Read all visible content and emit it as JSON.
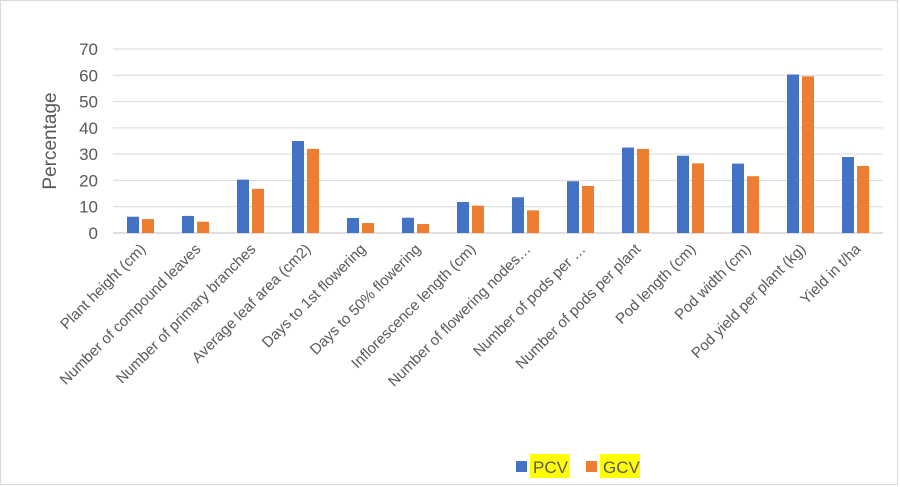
{
  "chart_data": {
    "type": "bar",
    "title": "",
    "xlabel": "",
    "ylabel": "Percentage",
    "ylim": [
      0,
      70
    ],
    "yticks": [
      0,
      10,
      20,
      30,
      40,
      50,
      60,
      70
    ],
    "grid": "horizontal",
    "legend_position": "bottom",
    "categories": [
      "Plant height (cm)",
      "Number of compound leaves",
      "Number of primary branches",
      "Average leaf area (cm2)",
      "Days to 1st flowering",
      "Days to 50% flowering",
      "Inflorescence length (cm)",
      "Number of flowering nodes…",
      "Number of pods per …",
      "Number of pods per plant",
      "Pod length (cm)",
      "Pod width (cm)",
      "Pod yield per plant (kg)",
      "Yield in t/ha"
    ],
    "series": [
      {
        "name": "PCV",
        "color": "#4472C4",
        "values": [
          6.2,
          6.5,
          20.3,
          35.0,
          5.7,
          5.8,
          11.8,
          13.6,
          19.7,
          32.5,
          29.4,
          26.4,
          60.3,
          28.9
        ]
      },
      {
        "name": "GCV",
        "color": "#ED7D31",
        "values": [
          5.3,
          4.3,
          16.8,
          32.0,
          3.8,
          3.4,
          10.4,
          8.6,
          17.9,
          32.0,
          26.5,
          21.6,
          59.6,
          25.5
        ]
      }
    ]
  },
  "legend_highlight_color": "#FFFF00"
}
